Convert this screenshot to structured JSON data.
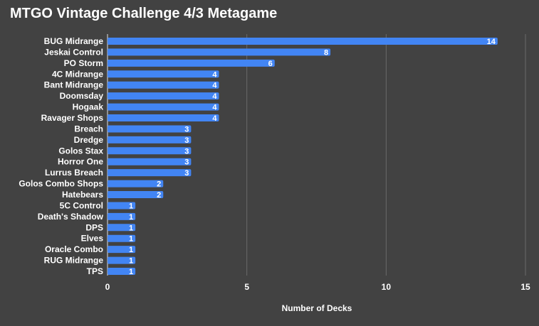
{
  "chart_data": {
    "type": "bar",
    "orientation": "horizontal",
    "title": "MTGO Vintage Challenge 4/3 Metagame",
    "xlabel": "Number of Decks",
    "ylabel": "",
    "xlim": [
      0,
      15
    ],
    "xticks": [
      "0",
      "5",
      "10",
      "15"
    ],
    "grid": true,
    "categories": [
      "BUG Midrange",
      "Jeskai Control",
      "PO Storm",
      "4C Midrange",
      "Bant Midrange",
      "Doomsday",
      "Hogaak",
      "Ravager Shops",
      "Breach",
      "Dredge",
      "Golos Stax",
      "Horror One",
      "Lurrus Breach",
      "Golos Combo Shops",
      "Hatebears",
      "5C Control",
      "Death's Shadow",
      "DPS",
      "Elves",
      "Oracle Combo",
      "RUG Midrange",
      "TPS"
    ],
    "values": [
      14,
      8,
      6,
      4,
      4,
      4,
      4,
      4,
      3,
      3,
      3,
      3,
      3,
      2,
      2,
      1,
      1,
      1,
      1,
      1,
      1,
      1
    ]
  },
  "colors": {
    "background": "#424242",
    "bar": "#4285f4",
    "text": "#ffffff",
    "grid": "#6a6a6a",
    "axis": "#e0e0e0"
  }
}
